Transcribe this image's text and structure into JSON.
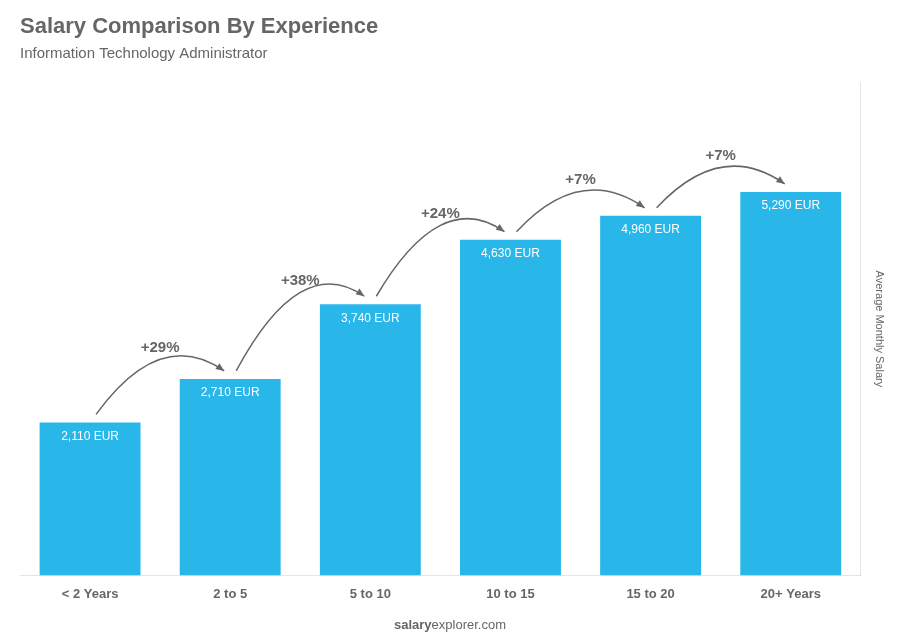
{
  "chart_data": {
    "type": "bar",
    "title": "Salary Comparison By Experience",
    "subtitle": "Information Technology Administrator",
    "ylabel": "Average Monthly Salary",
    "categories": [
      "< 2 Years",
      "2 to 5",
      "5 to 10",
      "10 to 15",
      "15 to 20",
      "20+ Years"
    ],
    "values": [
      2110,
      2710,
      3740,
      4630,
      4960,
      5290
    ],
    "value_labels": [
      "2,110 EUR",
      "2,710 EUR",
      "3,740 EUR",
      "4,630 EUR",
      "4,960 EUR",
      "5,290 EUR"
    ],
    "data_labels": true,
    "color": "#29b6e8",
    "ylim": [
      0,
      6800
    ],
    "grid": false,
    "tick_labels": "x",
    "annotations": [
      "+29%",
      "+38%",
      "+24%",
      "+7%",
      "+7%"
    ],
    "watermark": [
      "salary",
      "explorer.com"
    ]
  }
}
